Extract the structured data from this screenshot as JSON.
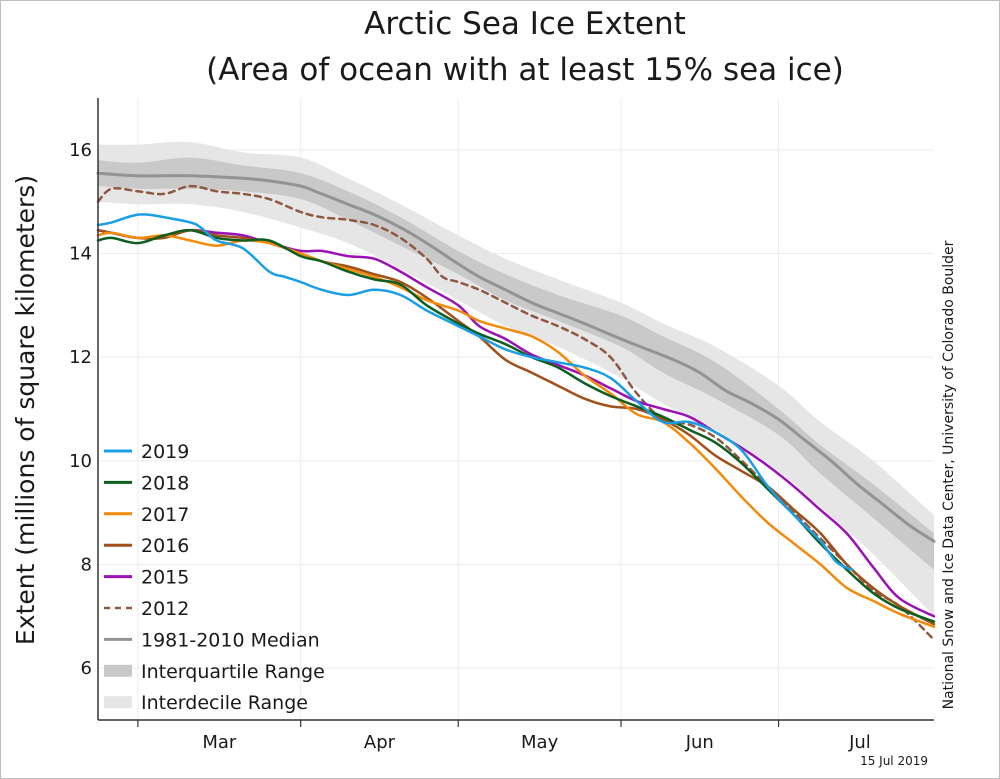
{
  "chart_data": {
    "type": "line",
    "title_line1": "Arctic Sea Ice Extent",
    "title_line2": "(Area of ocean with at least 15% sea ice)",
    "ylabel": "Extent (millions of square kilometers)",
    "xlabel": "",
    "credit": "National Snow and Ice Data Center, University of Colorado Boulder",
    "date_stamp": "15 Jul 2019",
    "x_unit": "day of year",
    "xlim": [
      52.4,
      211.6
    ],
    "ylim": [
      5,
      17
    ],
    "y_ticks": [
      {
        "value": 6,
        "label": "6"
      },
      {
        "value": 8,
        "label": "8"
      },
      {
        "value": 10,
        "label": "10"
      },
      {
        "value": 12,
        "label": "12"
      },
      {
        "value": 14,
        "label": "14"
      },
      {
        "value": 16,
        "label": "16"
      }
    ],
    "month_boundaries": [
      60,
      91,
      121,
      152,
      182
    ],
    "x_labels": [
      {
        "day": 75.5,
        "label": "Mar"
      },
      {
        "day": 106,
        "label": "Apr"
      },
      {
        "day": 136.5,
        "label": "May"
      },
      {
        "day": 167,
        "label": "Jun"
      },
      {
        "day": 197.5,
        "label": "Jul"
      }
    ],
    "grid": true,
    "legend_position": "bottom-left",
    "colors": {
      "y2019": "#1a9fe6",
      "y2018": "#0d5e1f",
      "y2017": "#f28a0c",
      "y2016": "#a0501a",
      "y2015": "#9b11b5",
      "y2012": "#8f5840",
      "median": "#939393",
      "interquartile": "#c9c9c9",
      "interdecile": "#e6e6e6",
      "axis": "#333333",
      "grid": "#ececec"
    },
    "legend": [
      {
        "key": "y2019",
        "label": "2019",
        "style": "line"
      },
      {
        "key": "y2018",
        "label": "2018",
        "style": "line"
      },
      {
        "key": "y2017",
        "label": "2017",
        "style": "line"
      },
      {
        "key": "y2016",
        "label": "2016",
        "style": "line"
      },
      {
        "key": "y2015",
        "label": "2015",
        "style": "line"
      },
      {
        "key": "y2012",
        "label": "2012",
        "style": "dashed"
      },
      {
        "key": "median",
        "label": "1981-2010 Median",
        "style": "line"
      },
      {
        "key": "interquartile",
        "label": "Interquartile Range",
        "style": "band"
      },
      {
        "key": "interdecile",
        "label": "Interdecile Range",
        "style": "band"
      }
    ],
    "bands": {
      "interdecile": {
        "x": [
          52.4,
          60,
          70,
          80,
          91,
          100,
          110,
          121,
          130,
          140,
          152,
          160,
          170,
          182,
          190,
          200,
          211.6
        ],
        "low": [
          15.0,
          14.95,
          14.95,
          14.8,
          14.5,
          14.2,
          13.7,
          13.1,
          12.6,
          12.2,
          11.6,
          11.1,
          10.6,
          9.8,
          9.1,
          8.2,
          7.0
        ],
        "high": [
          16.1,
          16.1,
          16.15,
          15.95,
          15.85,
          15.45,
          14.95,
          14.35,
          13.9,
          13.5,
          13.05,
          12.65,
          12.2,
          11.45,
          10.75,
          10.0,
          8.95
        ]
      },
      "interquartile": {
        "x": [
          52.4,
          60,
          70,
          80,
          91,
          100,
          110,
          121,
          130,
          140,
          152,
          160,
          170,
          182,
          190,
          200,
          211.6
        ],
        "low": [
          15.3,
          15.25,
          15.25,
          15.2,
          15.05,
          14.65,
          14.15,
          13.6,
          13.1,
          12.7,
          12.2,
          11.7,
          11.2,
          10.5,
          9.75,
          8.9,
          7.9
        ],
        "high": [
          15.8,
          15.75,
          15.85,
          15.7,
          15.55,
          15.2,
          14.7,
          14.05,
          13.6,
          13.2,
          12.8,
          12.4,
          11.9,
          11.0,
          10.3,
          9.55,
          8.6
        ]
      }
    },
    "series": [
      {
        "key": "median",
        "name": "1981-2010 Median",
        "dash": false,
        "width": 3,
        "x": [
          52.4,
          60,
          70,
          80,
          85,
          91,
          95,
          100,
          105,
          110,
          115,
          121,
          125,
          130,
          135,
          140,
          145,
          152,
          157,
          162,
          167,
          172,
          177,
          182,
          187,
          192,
          197,
          202,
          207,
          211.6
        ],
        "y": [
          15.55,
          15.5,
          15.5,
          15.45,
          15.4,
          15.3,
          15.15,
          14.95,
          14.75,
          14.5,
          14.2,
          13.8,
          13.55,
          13.3,
          13.05,
          12.85,
          12.65,
          12.35,
          12.15,
          11.95,
          11.7,
          11.35,
          11.1,
          10.8,
          10.4,
          10.0,
          9.55,
          9.15,
          8.75,
          8.45
        ]
      },
      {
        "key": "y2012",
        "name": "2012",
        "dash": true,
        "width": 2.5,
        "x": [
          52.4,
          55,
          60,
          65,
          70,
          75,
          80,
          85,
          91,
          95,
          100,
          105,
          110,
          115,
          118,
          121,
          125,
          130,
          135,
          140,
          145,
          150,
          155,
          160,
          165,
          170,
          175,
          180,
          185,
          190,
          195,
          200,
          205,
          211.6
        ],
        "y": [
          15.0,
          15.25,
          15.2,
          15.15,
          15.3,
          15.2,
          15.15,
          15.05,
          14.8,
          14.7,
          14.65,
          14.55,
          14.3,
          13.9,
          13.55,
          13.45,
          13.3,
          13.05,
          12.8,
          12.6,
          12.35,
          12.0,
          11.3,
          10.8,
          10.7,
          10.45,
          10.0,
          9.5,
          9.0,
          8.5,
          8.0,
          7.5,
          7.2,
          6.55
        ]
      },
      {
        "key": "y2015",
        "name": "2015",
        "dash": false,
        "width": 2.5,
        "x": [
          52.4,
          55,
          60,
          65,
          70,
          75,
          80,
          85,
          91,
          95,
          100,
          105,
          110,
          115,
          121,
          125,
          130,
          135,
          140,
          145,
          150,
          155,
          160,
          165,
          170,
          175,
          180,
          185,
          190,
          195,
          200,
          205,
          211.6
        ],
        "y": [
          14.45,
          14.4,
          14.3,
          14.35,
          14.45,
          14.4,
          14.35,
          14.2,
          14.05,
          14.05,
          13.95,
          13.9,
          13.65,
          13.35,
          13.0,
          12.6,
          12.35,
          12.05,
          11.85,
          11.65,
          11.4,
          11.15,
          11.0,
          10.85,
          10.55,
          10.25,
          9.9,
          9.5,
          9.05,
          8.6,
          7.95,
          7.35,
          7.0
        ]
      },
      {
        "key": "y2016",
        "name": "2016",
        "dash": false,
        "width": 2.5,
        "x": [
          52.4,
          55,
          60,
          65,
          70,
          75,
          80,
          85,
          91,
          95,
          100,
          105,
          110,
          115,
          121,
          125,
          130,
          135,
          140,
          145,
          150,
          155,
          160,
          165,
          170,
          175,
          180,
          185,
          190,
          195,
          200,
          205,
          211.6
        ],
        "y": [
          14.45,
          14.4,
          14.3,
          14.3,
          14.45,
          14.35,
          14.3,
          14.2,
          14.0,
          13.85,
          13.75,
          13.6,
          13.45,
          13.15,
          12.7,
          12.4,
          11.95,
          11.7,
          11.45,
          11.2,
          11.05,
          11.0,
          10.8,
          10.5,
          10.1,
          9.8,
          9.5,
          9.05,
          8.6,
          8.0,
          7.55,
          7.2,
          6.85
        ]
      },
      {
        "key": "y2017",
        "name": "2017",
        "dash": false,
        "width": 2.5,
        "x": [
          52.4,
          55,
          60,
          65,
          70,
          75,
          80,
          85,
          91,
          95,
          100,
          105,
          110,
          115,
          121,
          125,
          130,
          135,
          140,
          145,
          150,
          155,
          160,
          165,
          170,
          175,
          180,
          185,
          190,
          195,
          200,
          205,
          211.6
        ],
        "y": [
          14.35,
          14.4,
          14.3,
          14.35,
          14.25,
          14.15,
          14.25,
          14.2,
          14.0,
          13.85,
          13.7,
          13.55,
          13.35,
          13.1,
          12.9,
          12.7,
          12.55,
          12.4,
          12.1,
          11.65,
          11.3,
          10.9,
          10.75,
          10.35,
          9.85,
          9.3,
          8.8,
          8.4,
          8.0,
          7.55,
          7.3,
          7.05,
          6.8
        ]
      },
      {
        "key": "y2018",
        "name": "2018",
        "dash": false,
        "width": 2.5,
        "x": [
          52.4,
          55,
          60,
          65,
          70,
          75,
          80,
          85,
          91,
          95,
          100,
          105,
          110,
          115,
          121,
          125,
          130,
          135,
          140,
          145,
          150,
          155,
          160,
          165,
          170,
          175,
          180,
          185,
          190,
          195,
          200,
          205,
          211.6
        ],
        "y": [
          14.25,
          14.3,
          14.2,
          14.35,
          14.45,
          14.3,
          14.25,
          14.25,
          13.95,
          13.85,
          13.65,
          13.5,
          13.4,
          13.0,
          12.65,
          12.45,
          12.25,
          12.0,
          11.8,
          11.5,
          11.25,
          11.05,
          10.85,
          10.6,
          10.35,
          9.95,
          9.45,
          8.95,
          8.4,
          7.9,
          7.45,
          7.15,
          6.9
        ]
      },
      {
        "key": "y2019",
        "name": "2019",
        "dash": false,
        "width": 2.5,
        "x": [
          52.4,
          55,
          58,
          60,
          62,
          65,
          70,
          72,
          75,
          80,
          85,
          88,
          91,
          95,
          100,
          105,
          110,
          115,
          121,
          125,
          130,
          135,
          140,
          145,
          150,
          155,
          160,
          165,
          170,
          175,
          180,
          185,
          190,
          193,
          196
        ],
        "y": [
          14.55,
          14.6,
          14.7,
          14.75,
          14.75,
          14.7,
          14.6,
          14.5,
          14.25,
          14.1,
          13.65,
          13.55,
          13.45,
          13.3,
          13.2,
          13.3,
          13.2,
          12.9,
          12.6,
          12.4,
          12.15,
          12.0,
          11.9,
          11.8,
          11.6,
          11.15,
          10.75,
          10.75,
          10.55,
          10.2,
          9.5,
          8.95,
          8.45,
          8.05,
          7.9
        ]
      }
    ]
  }
}
